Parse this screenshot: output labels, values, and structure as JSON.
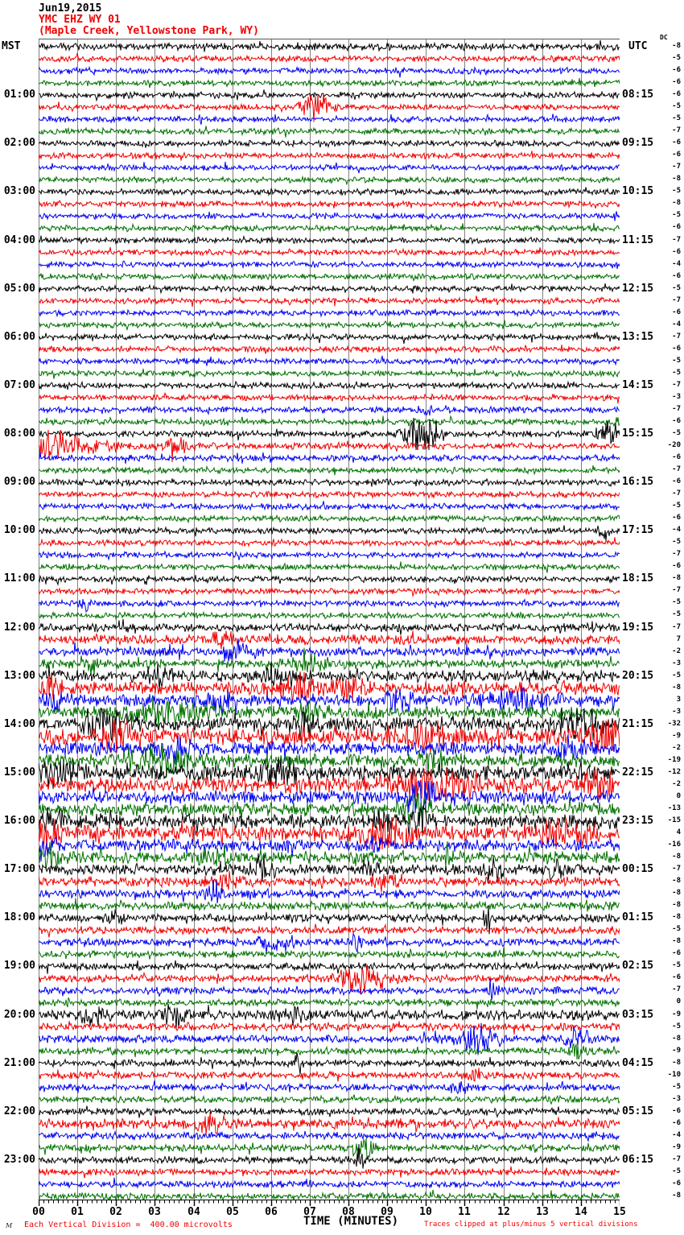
{
  "header": {
    "date": "Jun19,2015",
    "station": "YMC EHZ WY 01",
    "location": "(Maple Creek, Yellowstone Park, WY)",
    "left_tz": "MST",
    "right_tz": "UTC",
    "dc_label": "DC"
  },
  "footer": {
    "division_note": "Each Vertical Division =  400.00 microvolts",
    "time_axis_label": "TIME (MINUTES)",
    "clip_note": "Traces clipped at plus/minus 5 vertical divisions",
    "watermark": "M"
  },
  "colors": {
    "trace_cycle": [
      "#000000",
      "#f00000",
      "#0000f0",
      "#007000"
    ],
    "grid": "#808080",
    "frame": "#555555",
    "axis": "#000000",
    "note": "#f00000"
  },
  "chart_data": {
    "type": "line",
    "title": "Helicorder record YMC EHZ WY 01, Jun19,2015",
    "xlabel": "TIME (MINUTES)",
    "x_range": [
      0,
      15
    ],
    "x_ticks": [
      "00",
      "01",
      "02",
      "03",
      "04",
      "05",
      "06",
      "07",
      "08",
      "09",
      "10",
      "11",
      "12",
      "13",
      "14",
      "15"
    ],
    "lines_per_hour": 4,
    "minutes_per_line": 15,
    "clip_divisions": 5,
    "microvolts_per_division": 400.0,
    "rows": [
      {
        "dc": -8,
        "amp": 3.0
      },
      {
        "dc": -5,
        "amp": 2.6
      },
      {
        "dc": -6,
        "amp": 2.6
      },
      {
        "dc": -6,
        "amp": 2.5
      },
      {
        "mst": "01:00",
        "utc": "08:15",
        "dc": -6,
        "amp": 2.6
      },
      {
        "dc": -5,
        "amp": 2.5,
        "ev": [
          [
            7.2,
            0.35,
            11
          ]
        ]
      },
      {
        "dc": -5,
        "amp": 2.5
      },
      {
        "dc": -7,
        "amp": 2.5
      },
      {
        "mst": "02:00",
        "utc": "09:15",
        "dc": -6,
        "amp": 2.6
      },
      {
        "dc": -6,
        "amp": 2.5
      },
      {
        "dc": -7,
        "amp": 2.4
      },
      {
        "dc": -8,
        "amp": 2.4
      },
      {
        "mst": "03:00",
        "utc": "10:15",
        "dc": -5,
        "amp": 2.5
      },
      {
        "dc": -8,
        "amp": 2.4
      },
      {
        "dc": -5,
        "amp": 2.4
      },
      {
        "dc": -6,
        "amp": 2.4
      },
      {
        "mst": "04:00",
        "utc": "11:15",
        "dc": -7,
        "amp": 2.5
      },
      {
        "dc": -6,
        "amp": 2.4
      },
      {
        "dc": -4,
        "amp": 2.4
      },
      {
        "dc": -6,
        "amp": 2.4
      },
      {
        "mst": "05:00",
        "utc": "12:15",
        "dc": -5,
        "amp": 2.5
      },
      {
        "dc": -7,
        "amp": 2.4
      },
      {
        "dc": -6,
        "amp": 2.4
      },
      {
        "dc": -4,
        "amp": 2.4
      },
      {
        "mst": "06:00",
        "utc": "13:15",
        "dc": -7,
        "amp": 2.6
      },
      {
        "dc": -6,
        "amp": 2.5
      },
      {
        "dc": -5,
        "amp": 2.5
      },
      {
        "dc": -5,
        "amp": 2.4
      },
      {
        "mst": "07:00",
        "utc": "14:15",
        "dc": -7,
        "amp": 2.6
      },
      {
        "dc": -3,
        "amp": 2.5
      },
      {
        "dc": -7,
        "amp": 2.5,
        "ev": [
          [
            10.0,
            0.2,
            4
          ]
        ]
      },
      {
        "dc": -6,
        "amp": 2.5,
        "ev": [
          [
            14.8,
            0.2,
            6
          ]
        ]
      },
      {
        "mst": "08:00",
        "utc": "15:15",
        "dc": -5,
        "amp": 2.7,
        "ev": [
          [
            9.9,
            0.45,
            17
          ],
          [
            14.7,
            0.3,
            12
          ]
        ]
      },
      {
        "dc": -20,
        "amp": 2.7,
        "ev": [
          [
            0.35,
            0.4,
            13
          ],
          [
            1.3,
            0.7,
            5
          ],
          [
            3.5,
            0.4,
            5
          ]
        ]
      },
      {
        "dc": -6,
        "amp": 2.6
      },
      {
        "dc": -7,
        "amp": 2.5
      },
      {
        "mst": "09:00",
        "utc": "16:15",
        "dc": -6,
        "amp": 2.6
      },
      {
        "dc": -7,
        "amp": 2.5
      },
      {
        "dc": -5,
        "amp": 2.5
      },
      {
        "dc": -6,
        "amp": 2.5
      },
      {
        "mst": "10:00",
        "utc": "17:15",
        "dc": -4,
        "amp": 2.6,
        "ev": [
          [
            14.6,
            0.15,
            8
          ]
        ]
      },
      {
        "dc": -5,
        "amp": 2.5
      },
      {
        "dc": -7,
        "amp": 2.5
      },
      {
        "dc": -6,
        "amp": 2.5
      },
      {
        "mst": "11:00",
        "utc": "18:15",
        "dc": -8,
        "amp": 2.6
      },
      {
        "dc": -7,
        "amp": 2.5
      },
      {
        "dc": -5,
        "amp": 2.5,
        "ev": [
          [
            1.2,
            0.15,
            5
          ]
        ]
      },
      {
        "dc": -5,
        "amp": 2.5
      },
      {
        "mst": "12:00",
        "utc": "19:15",
        "dc": -7,
        "amp": 3.4
      },
      {
        "dc": 7,
        "amp": 4.0,
        "ev": [
          [
            4.7,
            0.3,
            6
          ]
        ]
      },
      {
        "dc": -2,
        "amp": 3.8,
        "ev": [
          [
            5.1,
            0.3,
            7
          ]
        ]
      },
      {
        "dc": -3,
        "amp": 3.8,
        "ev": [
          [
            1.4,
            0.12,
            9
          ],
          [
            6.9,
            0.5,
            6
          ]
        ]
      },
      {
        "mst": "13:00",
        "utc": "20:15",
        "dc": -5,
        "amp": 5.0,
        "ev": [
          [
            3.1,
            0.3,
            8
          ],
          [
            6.4,
            0.4,
            9
          ]
        ]
      },
      {
        "dc": -8,
        "amp": 5.5,
        "ev": [
          [
            0.3,
            0.2,
            9
          ],
          [
            6.8,
            0.4,
            10
          ],
          [
            8.0,
            0.4,
            9
          ]
        ]
      },
      {
        "dc": 3,
        "amp": 5.0,
        "ev": [
          [
            0.5,
            0.2,
            12
          ],
          [
            4.7,
            0.3,
            7
          ],
          [
            9.3,
            0.4,
            7
          ],
          [
            12.4,
            0.8,
            7
          ]
        ]
      },
      {
        "dc": -3,
        "amp": 5.0,
        "ev": [
          [
            3.2,
            0.9,
            9
          ],
          [
            7.0,
            0.4,
            7
          ]
        ]
      },
      {
        "mst": "14:00",
        "utc": "21:15",
        "dc": -32,
        "amp": 6.0,
        "ev": [
          [
            1.7,
            0.5,
            12
          ],
          [
            6.8,
            0.3,
            8
          ],
          [
            14.0,
            0.5,
            9
          ]
        ]
      },
      {
        "dc": -9,
        "amp": 7.0,
        "ev": [
          [
            2.0,
            0.4,
            10
          ],
          [
            9.9,
            0.6,
            12
          ],
          [
            14.6,
            0.4,
            12
          ]
        ]
      },
      {
        "dc": -2,
        "amp": 5.5,
        "ev": [
          [
            3.5,
            0.3,
            11
          ],
          [
            13.7,
            0.3,
            8
          ]
        ]
      },
      {
        "dc": -19,
        "amp": 5.5,
        "ev": [
          [
            3.2,
            0.9,
            10
          ],
          [
            10.2,
            0.3,
            8
          ]
        ]
      },
      {
        "mst": "15:00",
        "utc": "22:15",
        "dc": -12,
        "amp": 6.5,
        "ev": [
          [
            0.5,
            0.5,
            9
          ],
          [
            6.2,
            0.45,
            11
          ]
        ]
      },
      {
        "dc": -2,
        "amp": 6.5,
        "ev": [
          [
            10.2,
            1.0,
            11
          ],
          [
            14.5,
            0.4,
            10
          ]
        ]
      },
      {
        "dc": 0,
        "amp": 5.5,
        "ev": [
          [
            9.9,
            0.3,
            17
          ]
        ]
      },
      {
        "dc": -13,
        "amp": 5.5,
        "ev": [
          [
            9.7,
            0.3,
            13
          ]
        ]
      },
      {
        "mst": "16:00",
        "utc": "23:15",
        "dc": -15,
        "amp": 6.0,
        "ev": [
          [
            9.8,
            0.3,
            16
          ],
          [
            0.4,
            0.3,
            8
          ],
          [
            8.7,
            0.3,
            8
          ]
        ]
      },
      {
        "dc": 4,
        "amp": 6.5,
        "ev": [
          [
            9.0,
            0.7,
            10
          ],
          [
            0.2,
            0.3,
            9
          ],
          [
            13.5,
            0.7,
            9
          ]
        ]
      },
      {
        "dc": -16,
        "amp": 5.0,
        "ev": [
          [
            0.2,
            0.3,
            10
          ],
          [
            8.8,
            0.2,
            6
          ]
        ]
      },
      {
        "dc": -8,
        "amp": 5.0,
        "ev": [
          [
            0.25,
            0.3,
            9
          ],
          [
            4.5,
            0.3,
            6
          ],
          [
            10.55,
            0.1,
            14
          ]
        ]
      },
      {
        "mst": "17:00",
        "utc": "00:15",
        "dc": -7,
        "amp": 4.5,
        "ev": [
          [
            5.8,
            0.25,
            8
          ],
          [
            8.6,
            0.25,
            8
          ],
          [
            11.7,
            0.3,
            9
          ],
          [
            13.3,
            0.25,
            7
          ]
        ]
      },
      {
        "dc": -8,
        "amp": 4.0,
        "ev": [
          [
            4.8,
            0.3,
            6
          ],
          [
            9.0,
            0.3,
            5
          ]
        ]
      },
      {
        "dc": -8,
        "amp": 3.6,
        "ev": [
          [
            4.5,
            0.2,
            8
          ]
        ]
      },
      {
        "dc": -8,
        "amp": 3.5
      },
      {
        "mst": "18:00",
        "utc": "01:15",
        "dc": -8,
        "amp": 3.3,
        "ev": [
          [
            2.0,
            0.2,
            6
          ],
          [
            11.6,
            0.12,
            9
          ]
        ]
      },
      {
        "dc": -5,
        "amp": 3.2
      },
      {
        "dc": -8,
        "amp": 3.2,
        "ev": [
          [
            6.1,
            0.35,
            9
          ],
          [
            8.2,
            0.2,
            6
          ]
        ]
      },
      {
        "dc": -6,
        "amp": 3.0
      },
      {
        "mst": "19:00",
        "utc": "02:15",
        "dc": -5,
        "amp": 3.0
      },
      {
        "dc": -6,
        "amp": 3.0,
        "ev": [
          [
            8.4,
            0.7,
            10
          ]
        ]
      },
      {
        "dc": -7,
        "amp": 3.0,
        "ev": [
          [
            11.7,
            0.1,
            12
          ]
        ]
      },
      {
        "dc": 0,
        "amp": 2.9
      },
      {
        "mst": "20:00",
        "utc": "03:15",
        "dc": -9,
        "amp": 4.2,
        "ev": [
          [
            1.4,
            0.3,
            8
          ],
          [
            3.5,
            0.3,
            8
          ],
          [
            6.5,
            0.3,
            7
          ]
        ]
      },
      {
        "dc": -5,
        "amp": 3.4
      },
      {
        "dc": -8,
        "amp": 3.2,
        "ev": [
          [
            11.3,
            0.5,
            13
          ],
          [
            13.9,
            0.25,
            11
          ]
        ]
      },
      {
        "dc": -9,
        "amp": 3.0,
        "ev": [
          [
            13.9,
            0.2,
            5
          ]
        ]
      },
      {
        "mst": "21:00",
        "utc": "04:15",
        "dc": -8,
        "amp": 3.0,
        "ev": [
          [
            6.7,
            0.1,
            14
          ]
        ]
      },
      {
        "dc": -10,
        "amp": 2.9,
        "ev": [
          [
            11.3,
            0.15,
            5
          ]
        ]
      },
      {
        "dc": -5,
        "amp": 2.9,
        "ev": [
          [
            10.9,
            0.2,
            7
          ]
        ]
      },
      {
        "dc": -3,
        "amp": 2.8
      },
      {
        "mst": "22:00",
        "utc": "05:15",
        "dc": -6,
        "amp": 2.9
      },
      {
        "dc": -6,
        "amp": 4.2,
        "ev": [
          [
            4.5,
            0.4,
            6
          ]
        ]
      },
      {
        "dc": -4,
        "amp": 3.0
      },
      {
        "dc": -9,
        "amp": 2.9,
        "ev": [
          [
            8.4,
            0.25,
            11
          ]
        ]
      },
      {
        "mst": "23:00",
        "utc": "06:15",
        "dc": -7,
        "amp": 2.9,
        "ev": [
          [
            8.3,
            0.12,
            11
          ]
        ]
      },
      {
        "dc": -5,
        "amp": 2.8
      },
      {
        "dc": -6,
        "amp": 2.8
      },
      {
        "dc": -8,
        "amp": 2.8
      }
    ]
  }
}
